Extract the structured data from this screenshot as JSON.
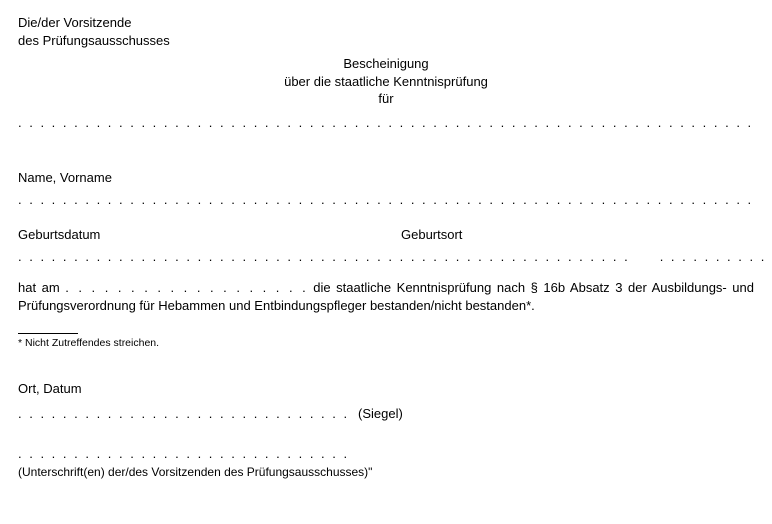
{
  "header": {
    "line1": "Die/der Vorsitzende",
    "line2": "des Prüfungsausschusses"
  },
  "title": {
    "line1": "Bescheinigung",
    "line2": "über die staatliche Kenntnisprüfung",
    "line3": "für"
  },
  "dots": {
    "center": ". . . . . . . . . . . . . . . . . . . . . . . . . . . . . . . . . . . . . . . . . . . . . . . . . . . . . . . . . . . . . . . . . . . . . . . . . . .",
    "full": ". . . . . . . . . . . . . . . . . . . . . . . . . . . . . . . . . . . . . . . . . . . . . . . . . . . . . . . . . . . . . . . . . . . . . . . . . . . . . . . . . . . . . . . . . . . . . . . . . . . . . . . . . . . . . . . . . . .",
    "half": ". . . . . . . . . . . . . . . . . . . . . . . . . . . . . . . . . . . . . . . . . . . . . . . . . . . . . . .",
    "short": ". . . . . . . . . . . . . . . . . . .",
    "signature": ". . . . . . . . . . . . . . . . . . . . . . . . . . . . . . . . . . . . . . . . . . . . . . . . . . . ."
  },
  "labels": {
    "name": "Name, Vorname",
    "birthdate": "Geburtsdatum",
    "birthplace": "Geburtsort",
    "ort_datum": "Ort, Datum",
    "siegel": "(Siegel)",
    "signature_caption": "(Unterschrift(en) der/des Vorsitzenden des Prüfungsausschusses)\""
  },
  "body": {
    "before": "hat am ",
    "after": " die staatliche Kenntnisprüfung nach § 16b Absatz 3 der Ausbildungs- und Prüfungsverordnung für Hebammen und Entbindungspfleger bestanden/nicht bestanden*."
  },
  "footnote": "*  Nicht Zutreffendes streichen."
}
